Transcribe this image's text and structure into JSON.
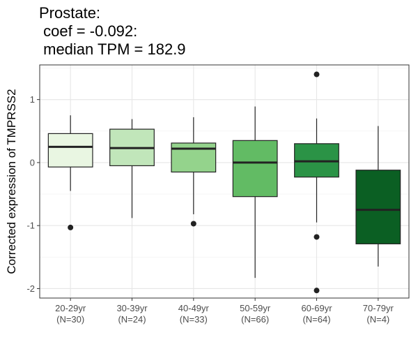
{
  "title": {
    "line1": "Prostate:",
    "line2": " coef = -0.092:",
    "line3": " median TPM = 182.9"
  },
  "chart_data": {
    "type": "boxplot",
    "ylabel": "Corrected expression of TMPRSS2",
    "xlabel": "",
    "ylim": [
      -2.15,
      1.55
    ],
    "yticks": [
      {
        "value": 1,
        "label": "1"
      },
      {
        "value": 0,
        "label": "0"
      },
      {
        "value": -1,
        "label": "-1"
      },
      {
        "value": -2,
        "label": "-2"
      }
    ],
    "grid": true,
    "categories": [
      {
        "label": "20-29yr",
        "n_label": "(N=30)",
        "min": -0.45,
        "q1": -0.07,
        "median": 0.25,
        "q3": 0.46,
        "max": 0.75,
        "outliers": [
          -1.03
        ],
        "fill": "#e9f6e2"
      },
      {
        "label": "30-39yr",
        "n_label": "(N=24)",
        "min": -0.88,
        "q1": -0.05,
        "median": 0.23,
        "q3": 0.53,
        "max": 0.69,
        "outliers": [],
        "fill": "#c1e6ba"
      },
      {
        "label": "40-49yr",
        "n_label": "(N=33)",
        "min": -0.82,
        "q1": -0.15,
        "median": 0.22,
        "q3": 0.31,
        "max": 0.72,
        "outliers": [
          -0.97
        ],
        "fill": "#94d38c"
      },
      {
        "label": "50-59yr",
        "n_label": "(N=66)",
        "min": -1.83,
        "q1": -0.54,
        "median": 0.0,
        "q3": 0.35,
        "max": 0.89,
        "outliers": [],
        "fill": "#62bb64"
      },
      {
        "label": "60-69yr",
        "n_label": "(N=64)",
        "min": -0.95,
        "q1": -0.23,
        "median": 0.02,
        "q3": 0.3,
        "max": 0.7,
        "outliers": [
          1.4,
          -1.18,
          -2.03
        ],
        "fill": "#2b9346"
      },
      {
        "label": "70-79yr",
        "n_label": "(N=4)",
        "min": -1.65,
        "q1": -1.29,
        "median": -0.75,
        "q3": -0.12,
        "max": 0.58,
        "outliers": [],
        "fill": "#0b5f23"
      }
    ]
  }
}
